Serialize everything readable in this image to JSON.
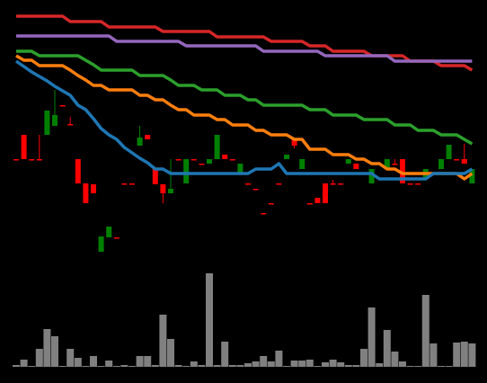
{
  "chart_data": {
    "type": "candlestick",
    "background": "#000000",
    "up_color": "#008000",
    "down_color": "#ff0000",
    "ylim": [
      0,
      280
    ],
    "open": [
      113,
      140,
      113,
      113,
      140,
      150,
      173,
      152,
      113,
      86,
      85,
      10,
      26,
      26,
      86,
      86,
      128,
      140,
      102,
      85,
      75,
      113,
      86,
      113,
      108,
      108,
      113,
      118,
      113,
      97,
      86,
      80,
      53,
      64,
      86,
      113,
      135,
      102,
      64,
      70,
      86,
      86,
      86,
      108,
      108,
      113,
      86,
      108,
      102,
      108,
      113,
      86,
      86,
      91,
      97,
      102,
      113,
      113,
      113,
      86
    ],
    "high": [
      113,
      140,
      113,
      140,
      167,
      190,
      173,
      160,
      113,
      86,
      85,
      27,
      38,
      26,
      86,
      86,
      150,
      140,
      102,
      85,
      113,
      113,
      113,
      113,
      108,
      113,
      140,
      118,
      113,
      108,
      86,
      80,
      53,
      64,
      86,
      118,
      135,
      113,
      64,
      70,
      86,
      90,
      86,
      113,
      108,
      113,
      102,
      108,
      113,
      113,
      113,
      86,
      86,
      102,
      97,
      113,
      129,
      113,
      130,
      102
    ],
    "low": [
      113,
      113,
      113,
      113,
      140,
      150,
      173,
      152,
      86,
      64,
      75,
      10,
      26,
      26,
      86,
      86,
      128,
      135,
      85,
      64,
      75,
      113,
      86,
      113,
      108,
      108,
      113,
      113,
      113,
      97,
      86,
      80,
      53,
      64,
      86,
      113,
      125,
      102,
      64,
      64,
      64,
      86,
      86,
      108,
      102,
      113,
      86,
      108,
      102,
      108,
      86,
      86,
      86,
      91,
      97,
      102,
      113,
      113,
      108,
      86
    ],
    "close": [
      113,
      113,
      113,
      113,
      167,
      162,
      173,
      152,
      86,
      64,
      75,
      27,
      38,
      26,
      86,
      86,
      137,
      135,
      85,
      75,
      80,
      113,
      113,
      113,
      108,
      113,
      140,
      113,
      113,
      108,
      86,
      80,
      53,
      64,
      86,
      118,
      128,
      113,
      64,
      64,
      64,
      86,
      86,
      113,
      102,
      113,
      102,
      108,
      113,
      108,
      86,
      86,
      86,
      102,
      97,
      113,
      129,
      113,
      108,
      102
    ],
    "series": [
      {
        "color": "#d62728",
        "values": [
          272,
          272,
          272,
          272,
          272,
          272,
          272,
          266,
          266,
          266,
          266,
          266,
          260,
          260,
          260,
          260,
          260,
          260,
          260,
          255,
          255,
          255,
          255,
          255,
          255,
          255,
          249,
          249,
          249,
          249,
          249,
          249,
          249,
          244,
          244,
          244,
          244,
          244,
          239,
          239,
          239,
          233,
          233,
          233,
          233,
          233,
          228,
          228,
          228,
          228,
          228,
          222,
          222,
          222,
          222,
          217,
          217,
          217,
          217,
          212
        ]
      },
      {
        "color": "#9467bd",
        "values": [
          250,
          250,
          250,
          250,
          250,
          250,
          250,
          250,
          250,
          250,
          250,
          250,
          250,
          244,
          244,
          244,
          244,
          244,
          244,
          244,
          244,
          244,
          239,
          239,
          239,
          239,
          239,
          239,
          239,
          239,
          239,
          239,
          233,
          233,
          233,
          233,
          233,
          233,
          233,
          233,
          228,
          228,
          228,
          228,
          228,
          228,
          228,
          228,
          228,
          222,
          222,
          222,
          222,
          222,
          222,
          222,
          222,
          222,
          222,
          222
        ]
      },
      {
        "color": "#2ca02c",
        "values": [
          233,
          233,
          233,
          228,
          228,
          228,
          228,
          228,
          228,
          223,
          218,
          212,
          212,
          212,
          212,
          212,
          206,
          206,
          206,
          206,
          201,
          195,
          195,
          195,
          190,
          190,
          190,
          184,
          184,
          184,
          179,
          179,
          173,
          173,
          173,
          173,
          173,
          173,
          168,
          168,
          168,
          162,
          162,
          162,
          162,
          157,
          157,
          157,
          157,
          151,
          151,
          151,
          145,
          145,
          145,
          140,
          140,
          140,
          135,
          130
        ]
      },
      {
        "color": "#ff7f0e",
        "values": [
          228,
          223,
          223,
          217,
          217,
          217,
          217,
          212,
          206,
          201,
          195,
          195,
          190,
          190,
          190,
          190,
          184,
          184,
          179,
          179,
          173,
          168,
          168,
          162,
          162,
          162,
          157,
          157,
          151,
          151,
          151,
          145,
          145,
          140,
          140,
          140,
          135,
          135,
          124,
          124,
          124,
          118,
          118,
          118,
          113,
          113,
          108,
          108,
          102,
          102,
          97,
          97,
          97,
          97,
          97,
          97,
          97,
          97,
          91,
          97
        ]
      },
      {
        "color": "#1f77b4",
        "values": [
          222,
          216,
          210,
          205,
          200,
          194,
          189,
          184,
          173,
          168,
          158,
          147,
          140,
          135,
          126,
          120,
          114,
          109,
          102,
          102,
          97,
          97,
          97,
          97,
          97,
          97,
          97,
          97,
          97,
          97,
          97,
          102,
          102,
          102,
          108,
          97,
          97,
          97,
          97,
          97,
          97,
          97,
          97,
          97,
          97,
          97,
          97,
          91,
          91,
          91,
          91,
          91,
          91,
          91,
          97,
          97,
          97,
          97,
          97,
          102
        ]
      }
    ],
    "volume": {
      "color": "#808080",
      "ylim": [
        0,
        113
      ],
      "values": [
        2,
        8,
        1,
        20,
        42,
        34,
        1,
        20,
        10,
        1,
        12,
        1,
        7,
        1,
        2,
        1,
        12,
        12,
        2,
        58,
        31,
        2,
        1,
        6,
        2,
        104,
        2,
        28,
        2,
        2,
        4,
        6,
        12,
        6,
        18,
        1,
        7,
        7,
        8,
        1,
        5,
        8,
        5,
        2,
        2,
        20,
        66,
        4,
        41,
        17,
        6,
        1,
        1,
        80,
        26,
        1,
        1,
        27,
        28,
        26
      ]
    }
  }
}
